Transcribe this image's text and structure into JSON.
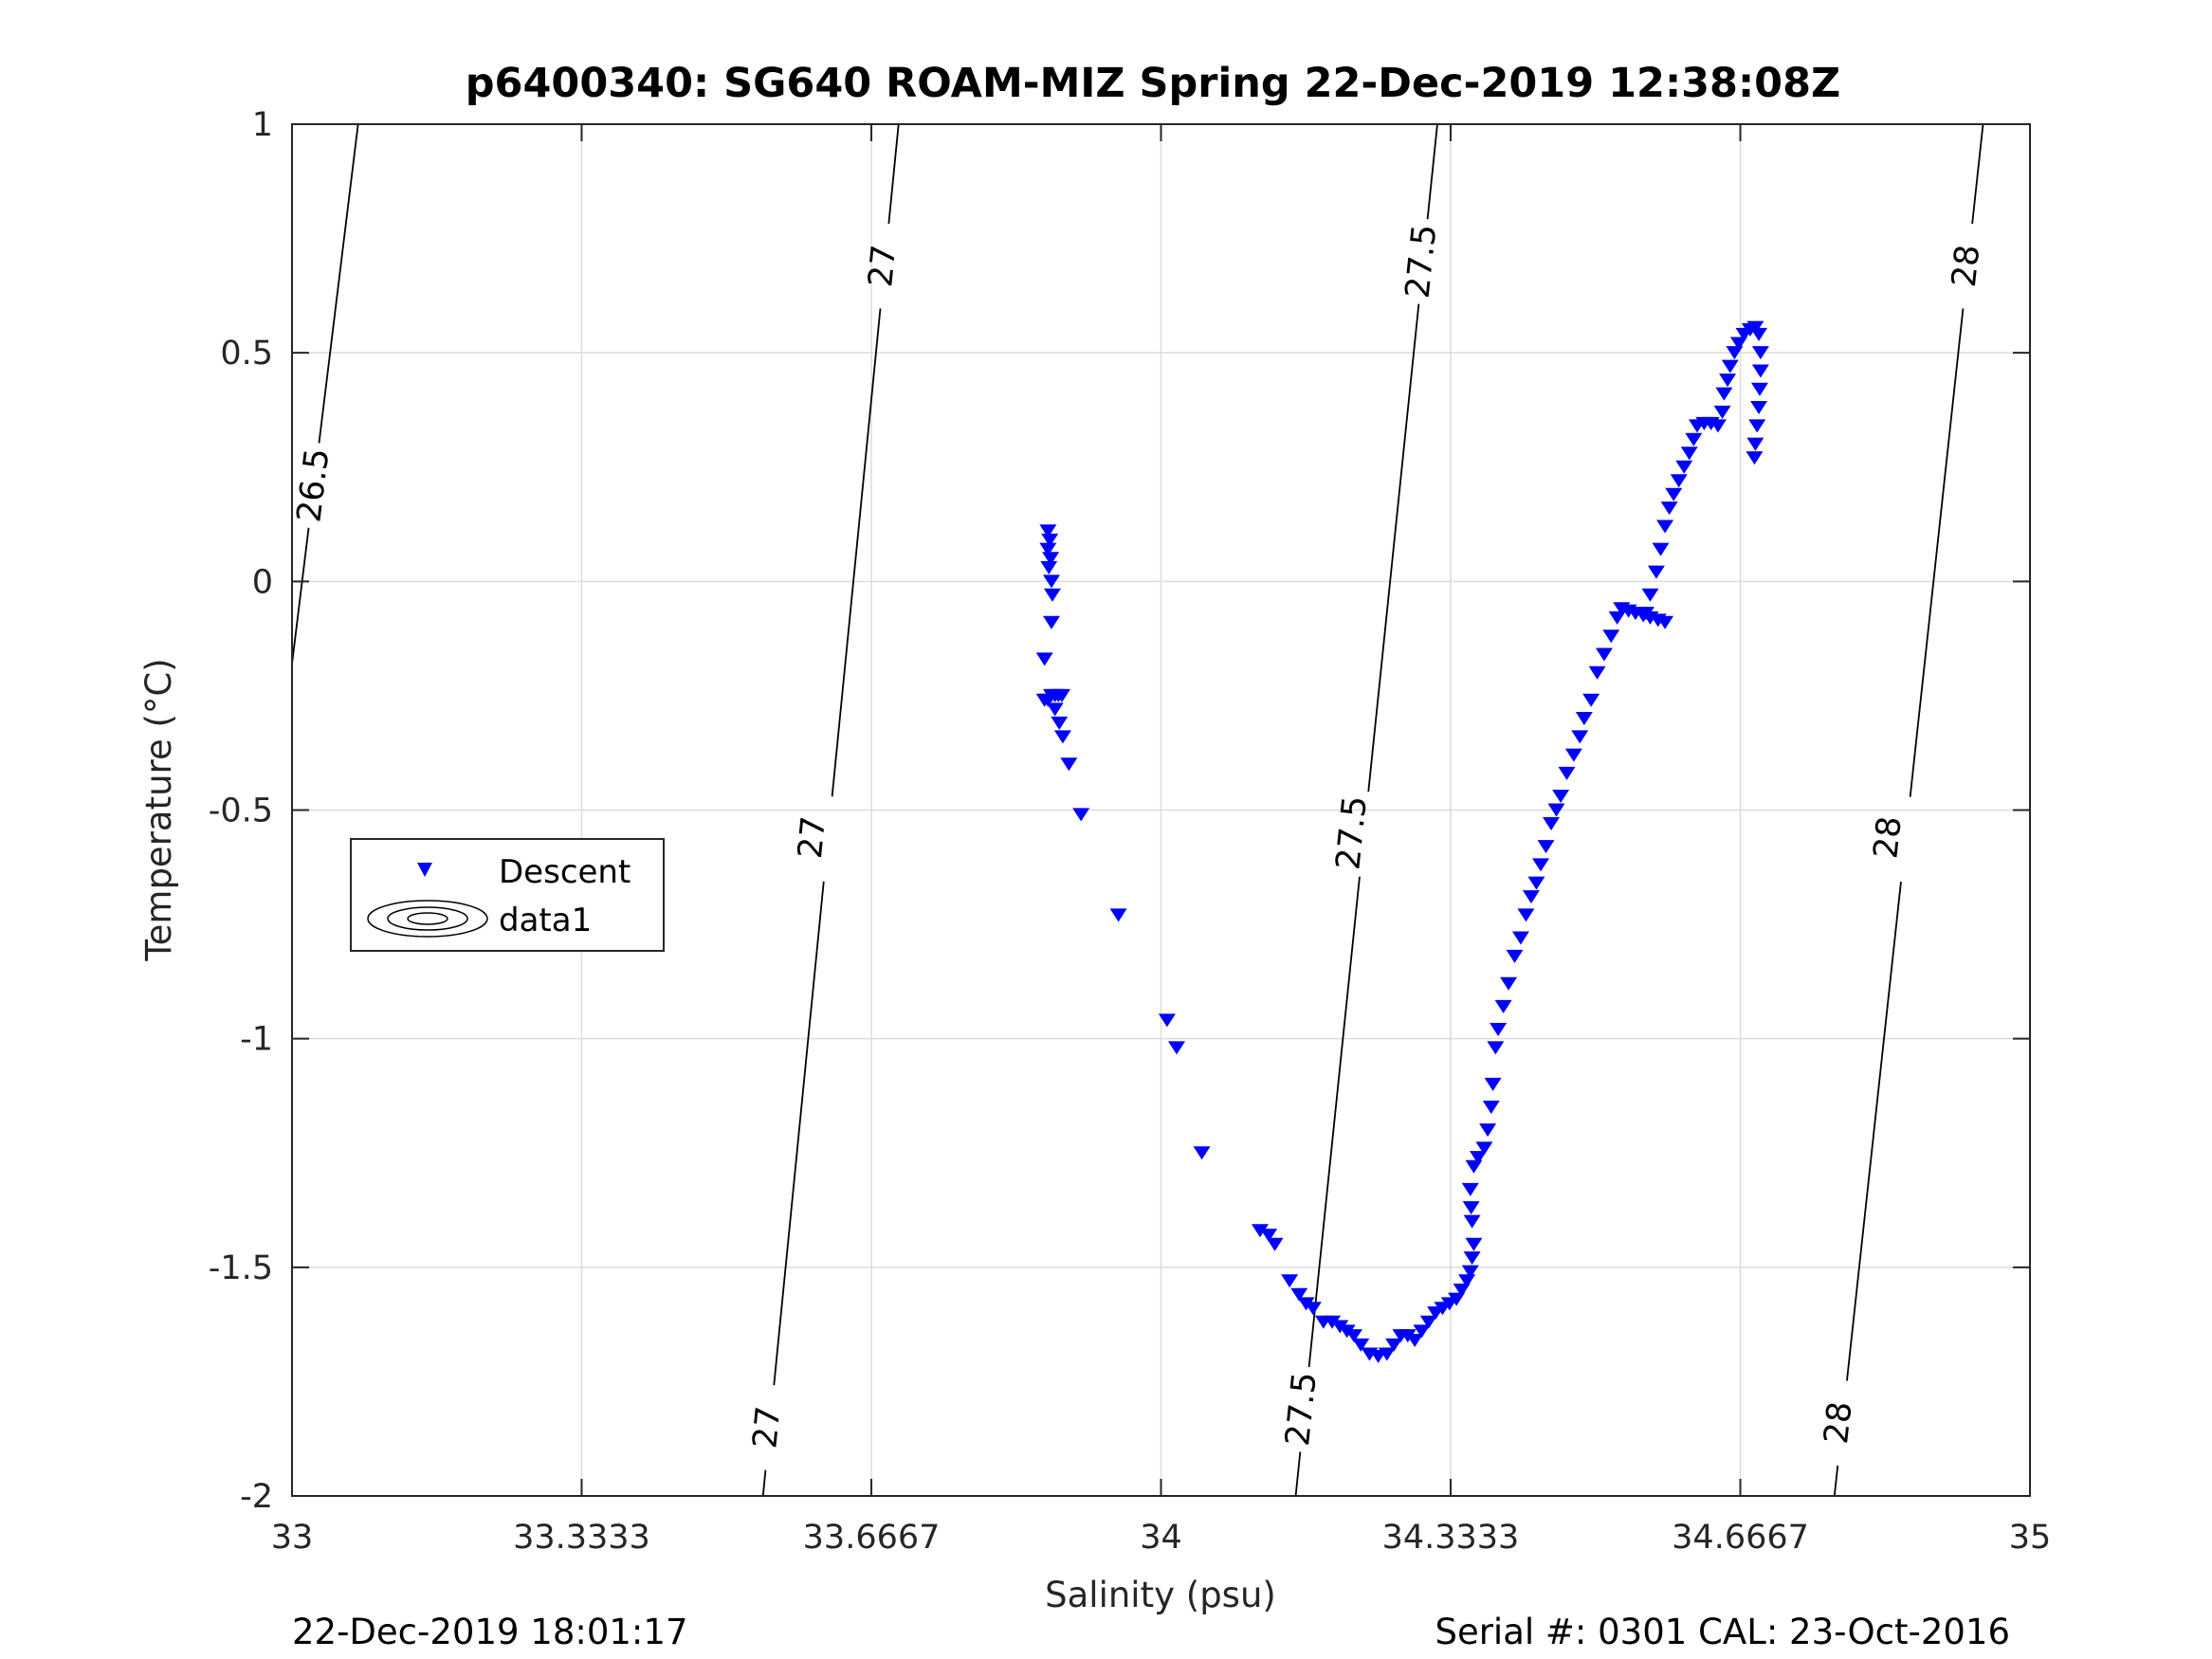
{
  "chart_data": {
    "type": "scatter",
    "title": "p6400340: SG640 ROAM-MIZ Spring 22-Dec-2019 12:38:08Z",
    "xlabel": "Salinity (psu)",
    "ylabel": "Temperature (°C)",
    "xlim": [
      33,
      35
    ],
    "ylim": [
      -2,
      1
    ],
    "xticks": [
      33,
      33.3333,
      33.6667,
      34,
      34.3333,
      34.6667,
      35
    ],
    "xtick_labels": [
      "33",
      "33.3333",
      "33.6667",
      "34",
      "34.3333",
      "34.6667",
      "35"
    ],
    "yticks": [
      -2,
      -1.5,
      -1,
      -0.5,
      0,
      0.5,
      1
    ],
    "ytick_labels": [
      "-2",
      "-1.5",
      "-1",
      "-0.5",
      "0",
      "0.5",
      "1"
    ],
    "grid": true,
    "legend_position": "middle-left",
    "legend": [
      "Descent",
      "data1"
    ],
    "marker_color": "#0000ff",
    "series": [
      {
        "name": "Descent",
        "marker": "triangle-down",
        "points": [
          [
            33.87,
            0.11
          ],
          [
            33.872,
            0.09
          ],
          [
            33.87,
            0.07
          ],
          [
            33.873,
            0.05
          ],
          [
            33.871,
            0.03
          ],
          [
            33.874,
            0.0
          ],
          [
            33.875,
            -0.03
          ],
          [
            33.874,
            -0.09
          ],
          [
            33.866,
            -0.17
          ],
          [
            33.866,
            -0.26
          ],
          [
            33.87,
            -0.26
          ],
          [
            33.874,
            -0.25
          ],
          [
            33.878,
            -0.25
          ],
          [
            33.882,
            -0.25
          ],
          [
            33.886,
            -0.25
          ],
          [
            33.878,
            -0.28
          ],
          [
            33.883,
            -0.31
          ],
          [
            33.887,
            -0.34
          ],
          [
            33.894,
            -0.4
          ],
          [
            33.908,
            -0.51
          ],
          [
            33.951,
            -0.73
          ],
          [
            34.007,
            -0.96
          ],
          [
            34.018,
            -1.02
          ],
          [
            34.047,
            -1.25
          ],
          [
            34.114,
            -1.42
          ],
          [
            34.124,
            -1.43
          ],
          [
            34.131,
            -1.45
          ],
          [
            34.148,
            -1.53
          ],
          [
            34.159,
            -1.56
          ],
          [
            34.167,
            -1.58
          ],
          [
            34.175,
            -1.59
          ],
          [
            34.187,
            -1.62
          ],
          [
            34.197,
            -1.62
          ],
          [
            34.206,
            -1.63
          ],
          [
            34.214,
            -1.64
          ],
          [
            34.222,
            -1.65
          ],
          [
            34.23,
            -1.67
          ],
          [
            34.24,
            -1.69
          ],
          [
            34.25,
            -1.695
          ],
          [
            34.26,
            -1.69
          ],
          [
            34.268,
            -1.67
          ],
          [
            34.276,
            -1.65
          ],
          [
            34.284,
            -1.65
          ],
          [
            34.292,
            -1.66
          ],
          [
            34.3,
            -1.64
          ],
          [
            34.308,
            -1.62
          ],
          [
            34.316,
            -1.6
          ],
          [
            34.324,
            -1.59
          ],
          [
            34.332,
            -1.58
          ],
          [
            34.34,
            -1.57
          ],
          [
            34.346,
            -1.55
          ],
          [
            34.352,
            -1.53
          ],
          [
            34.356,
            -1.51
          ],
          [
            34.358,
            -1.48
          ],
          [
            34.36,
            -1.45
          ],
          [
            34.358,
            -1.4
          ],
          [
            34.357,
            -1.37
          ],
          [
            34.356,
            -1.33
          ],
          [
            34.36,
            -1.28
          ],
          [
            34.365,
            -1.26
          ],
          [
            34.372,
            -1.24
          ],
          [
            34.376,
            -1.2
          ],
          [
            34.38,
            -1.15
          ],
          [
            34.382,
            -1.1
          ],
          [
            34.385,
            -1.02
          ],
          [
            34.388,
            -0.98
          ],
          [
            34.394,
            -0.93
          ],
          [
            34.4,
            -0.88
          ],
          [
            34.407,
            -0.82
          ],
          [
            34.414,
            -0.78
          ],
          [
            34.42,
            -0.73
          ],
          [
            34.426,
            -0.69
          ],
          [
            34.432,
            -0.66
          ],
          [
            34.437,
            -0.62
          ],
          [
            34.443,
            -0.58
          ],
          [
            34.449,
            -0.53
          ],
          [
            34.455,
            -0.5
          ],
          [
            34.46,
            -0.47
          ],
          [
            34.467,
            -0.42
          ],
          [
            34.475,
            -0.38
          ],
          [
            34.482,
            -0.34
          ],
          [
            34.487,
            -0.3
          ],
          [
            34.495,
            -0.26
          ],
          [
            34.502,
            -0.2
          ],
          [
            34.51,
            -0.16
          ],
          [
            34.518,
            -0.12
          ],
          [
            34.525,
            -0.08
          ],
          [
            34.53,
            -0.06
          ],
          [
            34.538,
            -0.065
          ],
          [
            34.546,
            -0.07
          ],
          [
            34.555,
            -0.075
          ],
          [
            34.563,
            -0.08
          ],
          [
            34.572,
            -0.085
          ],
          [
            34.58,
            -0.09
          ],
          [
            34.558,
            -0.07
          ],
          [
            34.563,
            -0.03
          ],
          [
            34.57,
            0.02
          ],
          [
            34.575,
            0.07
          ],
          [
            34.58,
            0.12
          ],
          [
            34.585,
            0.16
          ],
          [
            34.59,
            0.19
          ],
          [
            34.596,
            0.22
          ],
          [
            34.602,
            0.25
          ],
          [
            34.608,
            0.28
          ],
          [
            34.613,
            0.31
          ],
          [
            34.617,
            0.34
          ],
          [
            34.625,
            0.345
          ],
          [
            34.633,
            0.345
          ],
          [
            34.641,
            0.34
          ],
          [
            34.646,
            0.37
          ],
          [
            34.648,
            0.41
          ],
          [
            34.652,
            0.44
          ],
          [
            34.655,
            0.47
          ],
          [
            34.66,
            0.5
          ],
          [
            34.665,
            0.52
          ],
          [
            34.671,
            0.54
          ],
          [
            34.678,
            0.55
          ],
          [
            34.684,
            0.555
          ],
          [
            34.688,
            0.54
          ],
          [
            34.69,
            0.5
          ],
          [
            34.69,
            0.46
          ],
          [
            34.689,
            0.42
          ],
          [
            34.688,
            0.38
          ],
          [
            34.686,
            0.34
          ],
          [
            34.684,
            0.3
          ],
          [
            34.683,
            0.27
          ]
        ]
      },
      {
        "name": "data1",
        "type": "contour",
        "levels": [
          26.5,
          27,
          27.5,
          28
        ],
        "lines": [
          {
            "level": 26.5,
            "points": [
              [
                33.0,
                -0.18
              ],
              [
                33.076,
                1.0
              ]
            ],
            "labels": [
              [
                33.025,
                0.21
              ]
            ]
          },
          {
            "level": 27,
            "points": [
              [
                33.542,
                -2.0
              ],
              [
                33.698,
                1.0
              ]
            ],
            "labels": [
              [
                33.547,
                -1.85
              ],
              [
                33.599,
                -0.56
              ],
              [
                33.68,
                0.69
              ]
            ]
          },
          {
            "level": 27.5,
            "points": [
              [
                34.155,
                -2.0
              ],
              [
                34.318,
                1.0
              ]
            ],
            "labels": [
              [
                34.162,
                -1.81
              ],
              [
                34.22,
                -0.55
              ],
              [
                34.3,
                0.7
              ]
            ]
          },
          {
            "level": 28,
            "points": [
              [
                34.775,
                -2.0
              ],
              [
                34.946,
                1.0
              ]
            ],
            "labels": [
              [
                34.78,
                -1.84
              ],
              [
                34.837,
                -0.56
              ],
              [
                34.927,
                0.69
              ]
            ]
          }
        ]
      }
    ]
  },
  "footer": {
    "left": "22-Dec-2019 18:01:17",
    "right": "Serial #: 0301  CAL: 23-Oct-2016"
  }
}
